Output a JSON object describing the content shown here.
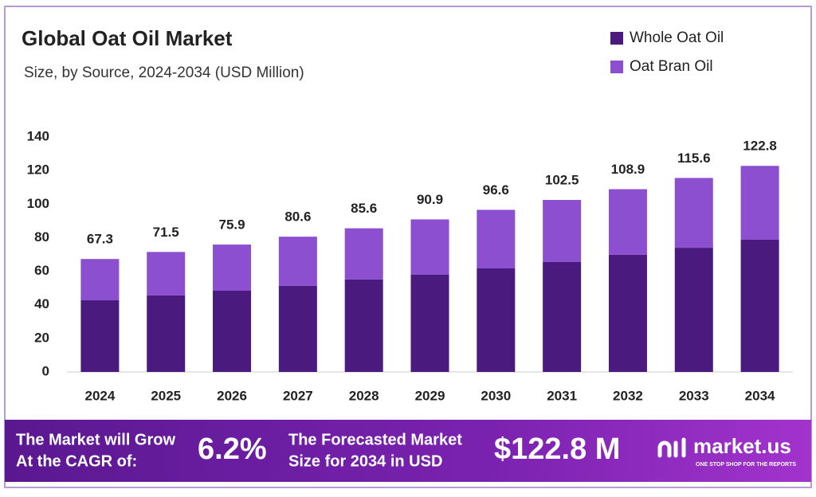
{
  "chart_data": {
    "type": "stacked-bar",
    "title": "Global Oat Oil Market",
    "subtitle": "Size, by Source, 2024-2034 (USD Million)",
    "categories": [
      "2024",
      "2025",
      "2026",
      "2027",
      "2028",
      "2029",
      "2030",
      "2031",
      "2032",
      "2033",
      "2034"
    ],
    "series": [
      {
        "name": "Whole Oat Oil",
        "color": "#4a1a7e",
        "values": [
          42.7,
          45.6,
          48.4,
          51.3,
          55.1,
          57.9,
          61.7,
          65.5,
          69.8,
          74.0,
          78.8
        ]
      },
      {
        "name": "Oat Bran Oil",
        "color": "#8b4fcf",
        "values": [
          24.6,
          25.9,
          27.5,
          29.3,
          30.5,
          33.0,
          34.9,
          37.0,
          39.1,
          41.6,
          44.0
        ]
      }
    ],
    "totals": [
      67.3,
      71.5,
      75.9,
      80.6,
      85.6,
      90.9,
      96.6,
      102.5,
      108.9,
      115.6,
      122.8
    ],
    "ylim": [
      0,
      140
    ],
    "yticks": [
      0,
      20,
      40,
      60,
      80,
      100,
      120,
      140
    ],
    "grid": false,
    "legend": "top-right"
  },
  "footer": {
    "grow_line1": "The Market will Grow",
    "grow_line2": "At the CAGR of:",
    "cagr": "6.2%",
    "forecast_line1": "The Forecasted Market",
    "forecast_line2": "Size for 2034 in USD",
    "forecast_value": "$122.8 M",
    "brand": "market.us",
    "tagline": "ONE STOP SHOP FOR THE REPORTS"
  }
}
